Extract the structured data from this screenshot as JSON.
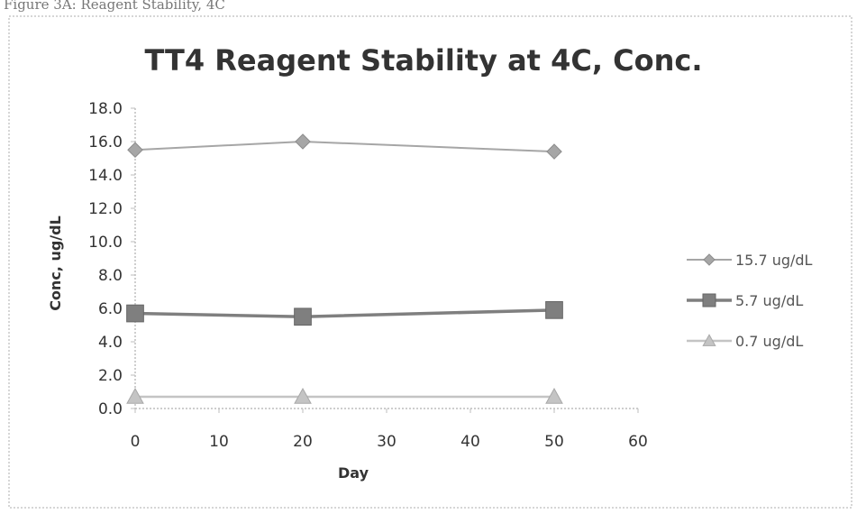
{
  "page": {
    "caption_fragment": "Figure 3A: Reagent Stability, 4C"
  },
  "chart_data": {
    "type": "line",
    "title": "TT4 Reagent Stability at 4C, Conc.",
    "xlabel": "Day",
    "ylabel": "Conc, ug/dL",
    "xlim": [
      0,
      60
    ],
    "ylim": [
      0,
      18
    ],
    "x_ticks": [
      "0",
      "10",
      "20",
      "30",
      "40",
      "50",
      "60"
    ],
    "y_ticks": [
      "0.0",
      "2.0",
      "4.0",
      "6.0",
      "8.0",
      "10.0",
      "12.0",
      "14.0",
      "16.0",
      "18.0"
    ],
    "grid": false,
    "legend_position": "right",
    "series": [
      {
        "name": "15.7 ug/dL",
        "marker": "diamond",
        "color": "#a6a6a6",
        "x": [
          0,
          20,
          50
        ],
        "y": [
          15.5,
          16.0,
          15.4
        ]
      },
      {
        "name": "5.7 ug/dL",
        "marker": "square",
        "color": "#7f7f7f",
        "x": [
          0,
          20,
          50
        ],
        "y": [
          5.7,
          5.5,
          5.9
        ]
      },
      {
        "name": "0.7 ug/dL",
        "marker": "triangle",
        "color": "#c4c4c4",
        "x": [
          0,
          20,
          50
        ],
        "y": [
          0.7,
          0.7,
          0.7
        ]
      }
    ]
  }
}
